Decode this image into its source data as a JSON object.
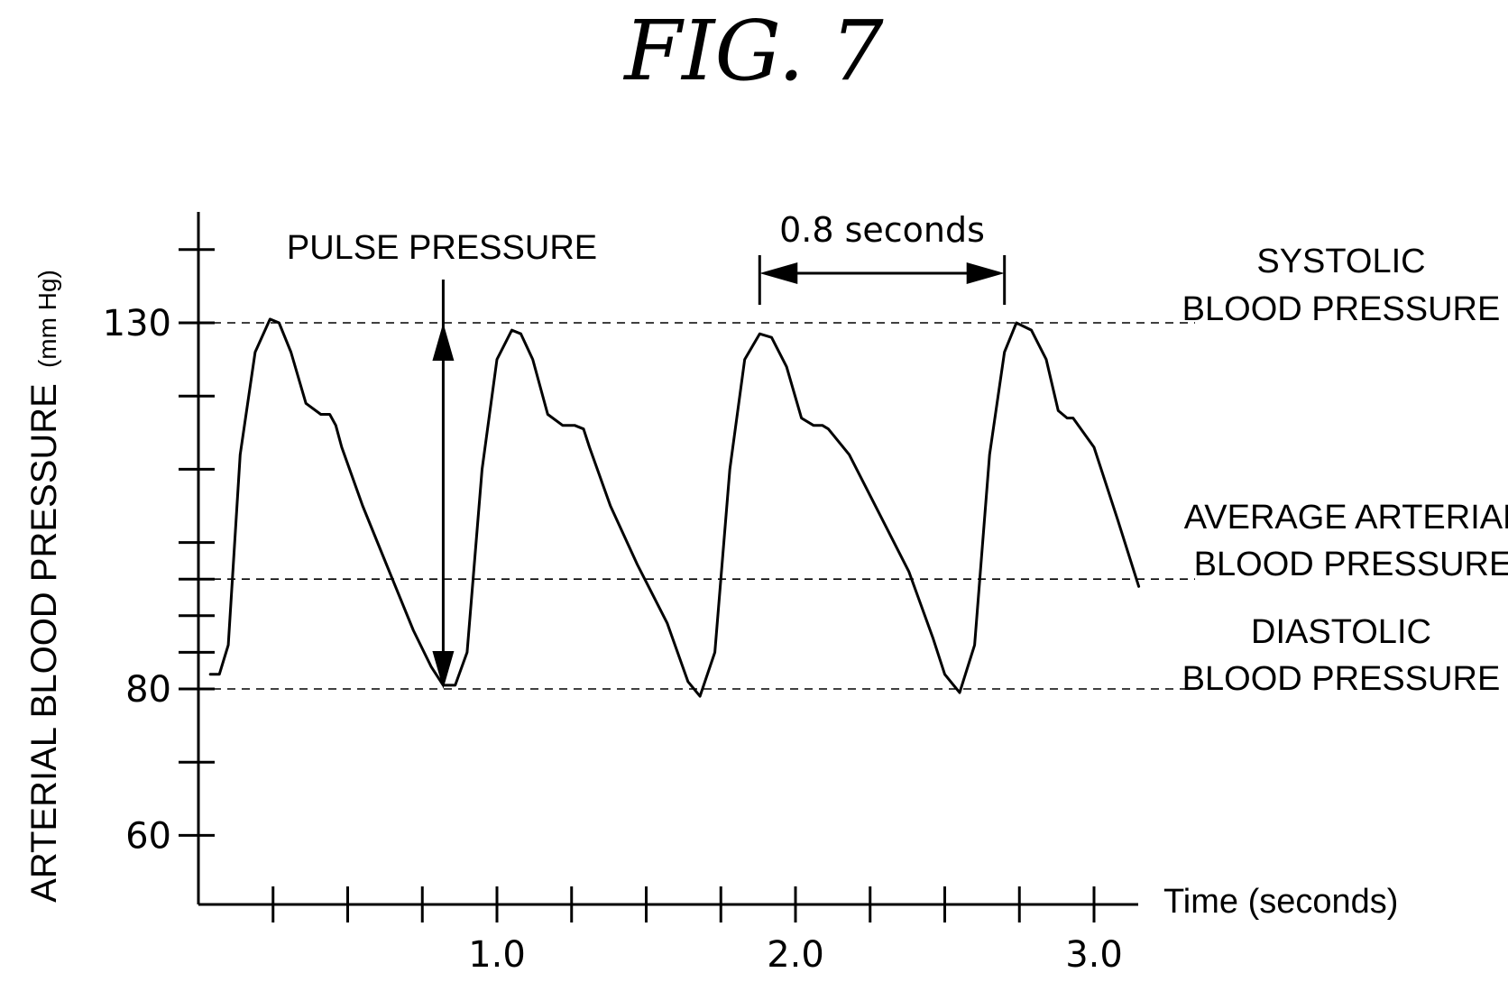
{
  "figure_title": "FIG. 7",
  "chart_data": {
    "type": "line",
    "title": "",
    "xlabel": "Time (seconds)",
    "ylabel": "ARTERIAL BLOOD PRESSURE",
    "ylabel_unit": "(mm Hg)",
    "xlim": [
      0,
      3.2
    ],
    "ylim": [
      50,
      143
    ],
    "x_ticks": [
      0.25,
      0.5,
      0.75,
      1.0,
      1.25,
      1.5,
      1.75,
      2.0,
      2.25,
      2.5,
      2.75,
      3.0
    ],
    "x_tick_labels": [
      {
        "value": 1.0,
        "label": "1.0"
      },
      {
        "value": 2.0,
        "label": "2.0"
      },
      {
        "value": 3.0,
        "label": "3.0"
      }
    ],
    "y_ticks": [
      60,
      70,
      80,
      85,
      90,
      95,
      100,
      110,
      120,
      130,
      140
    ],
    "y_tick_labels": [
      {
        "value": 130,
        "label": "130"
      },
      {
        "value": 80,
        "label": "80"
      },
      {
        "value": 60,
        "label": "60"
      }
    ],
    "grid": false,
    "reference_lines": [
      {
        "y": 130,
        "label_lines": [
          "SYSTOLIC",
          "BLOOD PRESSURE"
        ]
      },
      {
        "y": 95,
        "label_lines": [
          "AVERAGE ARTERIAL",
          "BLOOD PRESSURE"
        ]
      },
      {
        "y": 80,
        "label_lines": [
          "DIASTOLIC",
          "BLOOD PRESSURE"
        ]
      }
    ],
    "annotations": {
      "pulse_pressure": {
        "label": "PULSE PRESSURE",
        "x": 0.82,
        "y_from": 80,
        "y_to": 130
      },
      "period": {
        "label": "0.8 seconds",
        "x_from": 1.88,
        "x_to": 2.7
      }
    },
    "series": [
      {
        "x": [
          0.04,
          0.07,
          0.1,
          0.14,
          0.19,
          0.24,
          0.27,
          0.31,
          0.36,
          0.41,
          0.44,
          0.46,
          0.48,
          0.55,
          0.63,
          0.72,
          0.78,
          0.82,
          0.86,
          0.9,
          0.95,
          1.0,
          1.05,
          1.08,
          1.12,
          1.17,
          1.22,
          1.26,
          1.29,
          1.31,
          1.38,
          1.47,
          1.57,
          1.64,
          1.68,
          1.73,
          1.78,
          1.83,
          1.88,
          1.92,
          1.97,
          2.02,
          2.06,
          2.09,
          2.11,
          2.18,
          2.28,
          2.38,
          2.46,
          2.5,
          2.55,
          2.6,
          2.65,
          2.7,
          2.74,
          2.79,
          2.84,
          2.88,
          2.91,
          2.93,
          3.0,
          3.08,
          3.15
        ],
        "values": [
          82,
          82,
          86,
          112,
          126,
          130.5,
          130,
          126,
          119,
          117.5,
          117.5,
          116,
          113,
          105,
          97,
          88,
          83,
          80.5,
          80.5,
          85,
          110,
          125,
          129,
          128.5,
          125,
          117.5,
          116,
          116,
          115.5,
          113,
          105,
          97,
          89,
          81,
          79,
          85,
          110,
          125,
          128.5,
          128,
          124,
          117,
          116,
          116,
          115.5,
          112,
          104,
          96,
          87,
          82,
          79.5,
          86,
          112,
          126,
          130,
          129,
          125,
          118,
          117,
          117,
          113,
          103,
          94
        ]
      }
    ]
  }
}
